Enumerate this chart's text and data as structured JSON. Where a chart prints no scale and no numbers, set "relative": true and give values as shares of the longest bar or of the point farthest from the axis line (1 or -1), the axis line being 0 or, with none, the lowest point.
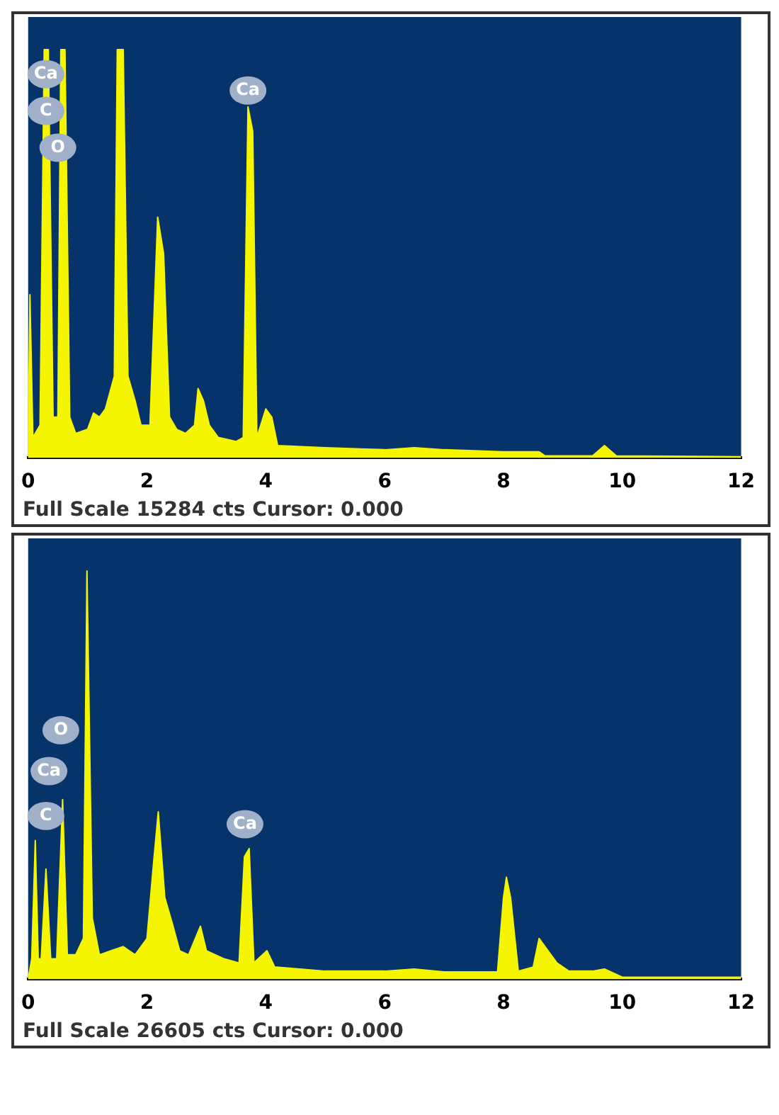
{
  "chart_data": [
    {
      "type": "area",
      "relative": true,
      "xlim": [
        0,
        12
      ],
      "xticks": [
        0,
        2,
        4,
        6,
        8,
        10,
        12
      ],
      "tick_labels": "x",
      "grid": false,
      "legend": false,
      "series": [
        {
          "color": "#f5f500",
          "x": [
            0,
            0.03,
            0.08,
            0.2,
            0.27,
            0.34,
            0.42,
            0.5,
            0.55,
            0.62,
            0.7,
            0.8,
            1.0,
            1.1,
            1.2,
            1.3,
            1.45,
            1.5,
            1.6,
            1.68,
            1.8,
            1.9,
            2.05,
            2.18,
            2.28,
            2.38,
            2.5,
            2.65,
            2.8,
            2.86,
            2.95,
            3.05,
            3.2,
            3.5,
            3.62,
            3.7,
            3.78,
            3.85,
            4.0,
            4.1,
            4.2,
            5,
            6,
            6.5,
            7,
            8,
            8.6,
            8.7,
            9.5,
            9.7,
            9.9,
            12
          ],
          "values": [
            0,
            0.4,
            0.05,
            0.08,
            1,
            1,
            0.1,
            0.1,
            1,
            1,
            0.1,
            0.06,
            0.07,
            0.11,
            0.1,
            0.12,
            0.2,
            1,
            1,
            0.2,
            0.14,
            0.08,
            0.08,
            0.59,
            0.5,
            0.1,
            0.07,
            0.06,
            0.08,
            0.17,
            0.14,
            0.08,
            0.05,
            0.04,
            0.05,
            0.86,
            0.8,
            0.05,
            0.12,
            0.1,
            0.03,
            0.025,
            0.02,
            0.025,
            0.02,
            0.015,
            0.015,
            0.005,
            0.005,
            0.03,
            0.005,
            0.003
          ]
        }
      ],
      "annotations": [
        {
          "text": "Ca",
          "x": 0.3,
          "y": 0.94
        },
        {
          "text": "C",
          "x": 0.3,
          "y": 0.85
        },
        {
          "text": "O",
          "x": 0.5,
          "y": 0.76
        },
        {
          "text": "Ca",
          "x": 3.7,
          "y": 0.9
        },
        "Full Scale 15284 cts Cursor: 0.000"
      ]
    },
    {
      "type": "area",
      "relative": true,
      "xlim": [
        0,
        12
      ],
      "xticks": [
        0,
        2,
        4,
        6,
        8,
        10,
        12
      ],
      "tick_labels": "x",
      "grid": false,
      "legend": false,
      "series": [
        {
          "color": "#f5f500",
          "x": [
            0,
            0.06,
            0.12,
            0.17,
            0.22,
            0.3,
            0.38,
            0.48,
            0.58,
            0.66,
            0.8,
            0.93,
            0.99,
            1.08,
            1.2,
            1.4,
            1.6,
            1.8,
            2.0,
            2.12,
            2.19,
            2.3,
            2.42,
            2.55,
            2.7,
            2.9,
            3.0,
            3.3,
            3.55,
            3.64,
            3.72,
            3.8,
            4.02,
            4.15,
            5,
            6,
            6.5,
            7,
            7.9,
            8.0,
            8.05,
            8.12,
            8.25,
            8.5,
            8.6,
            8.7,
            8.9,
            9.1,
            9.5,
            9.7,
            10,
            12
          ],
          "values": [
            0,
            0.05,
            0.34,
            0.05,
            0.05,
            0.27,
            0.05,
            0.05,
            0.44,
            0.06,
            0.06,
            0.1,
            1,
            0.15,
            0.06,
            0.07,
            0.08,
            0.06,
            0.1,
            0.3,
            0.41,
            0.2,
            0.14,
            0.07,
            0.06,
            0.13,
            0.07,
            0.05,
            0.04,
            0.3,
            0.32,
            0.04,
            0.07,
            0.03,
            0.02,
            0.02,
            0.025,
            0.018,
            0.018,
            0.2,
            0.25,
            0.2,
            0.02,
            0.03,
            0.1,
            0.08,
            0.04,
            0.02,
            0.02,
            0.025,
            0.005,
            0.005
          ]
        }
      ],
      "annotations": [
        {
          "text": "O",
          "x": 0.55,
          "y": 0.61
        },
        {
          "text": "Ca",
          "x": 0.35,
          "y": 0.51
        },
        {
          "text": "C",
          "x": 0.3,
          "y": 0.4
        },
        {
          "text": "Ca",
          "x": 3.65,
          "y": 0.38
        },
        "Full Scale 26605 cts Cursor: 0.000"
      ]
    }
  ]
}
